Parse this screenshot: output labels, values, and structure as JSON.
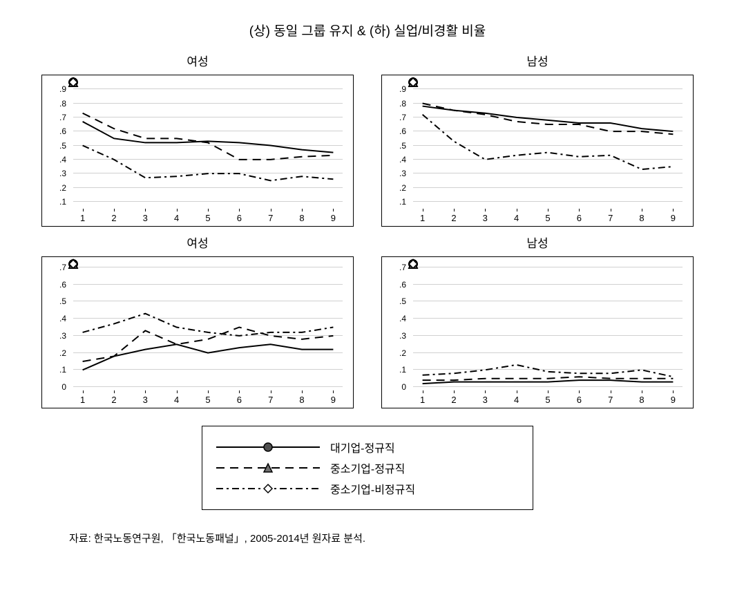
{
  "main_title": "(상) 동일 그룹 유지 & (하) 실업/비경활 비율",
  "source_text": "자료: 한국노동연구원, 「한국노동패널」, 2005-2014년 원자료 분석.",
  "colors": {
    "line": "#000000",
    "grid": "#d0d0d0",
    "marker_fill_solid": "#505050",
    "marker_fill_solid_tri": "#707070",
    "marker_fill_hollow": "#ffffff",
    "background": "#ffffff"
  },
  "series_defs": [
    {
      "key": "s1",
      "label": "대기업-정규직",
      "dash": "solid",
      "marker": "circle",
      "fill": "solid"
    },
    {
      "key": "s2",
      "label": "중소기업-정규직",
      "dash": "long",
      "marker": "triangle",
      "fill": "solid"
    },
    {
      "key": "s3",
      "label": "중소기업-비정규직",
      "dash": "dashdot",
      "marker": "diamond",
      "fill": "hollow"
    }
  ],
  "line_width": 2,
  "marker_size": 6,
  "panels": [
    {
      "title": "여성",
      "x": [
        1,
        2,
        3,
        4,
        5,
        6,
        7,
        8,
        9
      ],
      "xlim": [
        0.7,
        9.3
      ],
      "ylim": [
        0.05,
        0.95
      ],
      "yticks": [
        0.1,
        0.2,
        0.3,
        0.4,
        0.5,
        0.6,
        0.7,
        0.8,
        0.9
      ],
      "ytick_labels": [
        ".1",
        ".2",
        ".3",
        ".4",
        ".5",
        ".6",
        ".7",
        ".8",
        ".9"
      ],
      "series": {
        "s1": [
          0.67,
          0.55,
          0.52,
          0.52,
          0.53,
          0.52,
          0.5,
          0.47,
          0.45
        ],
        "s2": [
          0.73,
          0.62,
          0.55,
          0.55,
          0.52,
          0.4,
          0.4,
          0.42,
          0.43
        ],
        "s3": [
          0.5,
          0.4,
          0.27,
          0.28,
          0.3,
          0.3,
          0.25,
          0.28,
          0.26
        ]
      }
    },
    {
      "title": "남성",
      "x": [
        1,
        2,
        3,
        4,
        5,
        6,
        7,
        8,
        9
      ],
      "xlim": [
        0.7,
        9.3
      ],
      "ylim": [
        0.05,
        0.95
      ],
      "yticks": [
        0.1,
        0.2,
        0.3,
        0.4,
        0.5,
        0.6,
        0.7,
        0.8,
        0.9
      ],
      "ytick_labels": [
        ".1",
        ".2",
        ".3",
        ".4",
        ".5",
        ".6",
        ".7",
        ".8",
        ".9"
      ],
      "series": {
        "s1": [
          0.78,
          0.75,
          0.73,
          0.7,
          0.68,
          0.66,
          0.66,
          0.62,
          0.6
        ],
        "s2": [
          0.8,
          0.75,
          0.72,
          0.67,
          0.65,
          0.65,
          0.6,
          0.6,
          0.58
        ],
        "s3": [
          0.72,
          0.53,
          0.4,
          0.43,
          0.45,
          0.42,
          0.43,
          0.33,
          0.35
        ]
      }
    },
    {
      "title": "여성",
      "x": [
        1,
        2,
        3,
        4,
        5,
        6,
        7,
        8,
        9
      ],
      "xlim": [
        0.7,
        9.3
      ],
      "ylim": [
        -0.02,
        0.72
      ],
      "yticks": [
        0,
        0.1,
        0.2,
        0.3,
        0.4,
        0.5,
        0.6,
        0.7
      ],
      "ytick_labels": [
        "0",
        ".1",
        ".2",
        ".3",
        ".4",
        ".5",
        ".6",
        ".7"
      ],
      "series": {
        "s1": [
          0.1,
          0.18,
          0.22,
          0.25,
          0.2,
          0.23,
          0.25,
          0.22,
          0.22
        ],
        "s2": [
          0.15,
          0.18,
          0.33,
          0.25,
          0.28,
          0.35,
          0.3,
          0.28,
          0.3
        ],
        "s3": [
          0.32,
          0.37,
          0.43,
          0.35,
          0.32,
          0.3,
          0.32,
          0.32,
          0.35
        ]
      }
    },
    {
      "title": "남성",
      "x": [
        1,
        2,
        3,
        4,
        5,
        6,
        7,
        8,
        9
      ],
      "xlim": [
        0.7,
        9.3
      ],
      "ylim": [
        -0.02,
        0.72
      ],
      "yticks": [
        0,
        0.1,
        0.2,
        0.3,
        0.4,
        0.5,
        0.6,
        0.7
      ],
      "ytick_labels": [
        "0",
        ".1",
        ".2",
        ".3",
        ".4",
        ".5",
        ".6",
        ".7"
      ],
      "series": {
        "s1": [
          0.02,
          0.03,
          0.03,
          0.03,
          0.03,
          0.04,
          0.04,
          0.03,
          0.03
        ],
        "s2": [
          0.04,
          0.04,
          0.05,
          0.05,
          0.05,
          0.06,
          0.05,
          0.05,
          0.05
        ],
        "s3": [
          0.07,
          0.08,
          0.1,
          0.13,
          0.09,
          0.08,
          0.08,
          0.1,
          0.06
        ]
      }
    }
  ]
}
